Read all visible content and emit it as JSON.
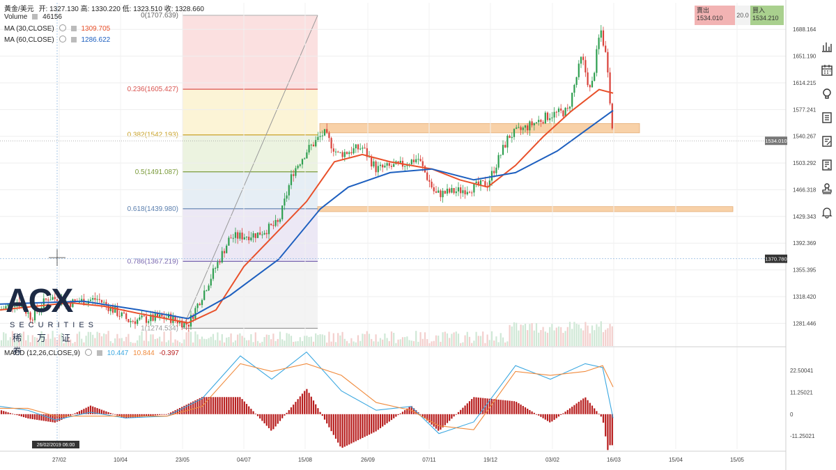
{
  "header": {
    "symbol": "黃金/美元",
    "ohlc_text": "开: 1327.130 高: 1330.220 低: 1323.510 收: 1328.660",
    "volume_label": "Volume",
    "volume_value": "46156",
    "ma30_label": "MA (30,CLOSE)",
    "ma30_value": "1309.705",
    "ma60_label": "MA (60,CLOSE)",
    "ma60_value": "1286.622",
    "macd_label": "MACD (12,26,CLOSE,9)",
    "macd_values": [
      "10.447",
      "10.844",
      "-0.397"
    ]
  },
  "trade": {
    "sell_label": "賣出",
    "sell_price": "1534.010",
    "spread": "20.0",
    "buy_label": "買入",
    "buy_price": "1534.210"
  },
  "logo": {
    "brand": "ACX",
    "sub": "SECURITIES",
    "cn": "稀万证券"
  },
  "toolbar": [
    "bar-chart-icon",
    "calendar-icon",
    "lightbulb-icon",
    "document-icon",
    "edit-document-icon",
    "report-icon",
    "stamp-icon",
    "bell-icon"
  ],
  "colors": {
    "up": "#2e9e4f",
    "down": "#d9413a",
    "ma30": "#e8502a",
    "ma60": "#1d5fbf",
    "macd_line": "#3aa7e0",
    "signal_line": "#f08a3c",
    "hist": "#b71c1c",
    "zone": "#f7c99a"
  },
  "chart_data": {
    "type": "candlestick",
    "instrument": "黃金/美元",
    "price_axis_ticks": [
      "1688.164",
      "1651.190",
      "1614.215",
      "1577.241",
      "1540.267",
      "1503.292",
      "1466.318",
      "1429.343",
      "1392.369",
      "1355.395",
      "1318.420",
      "1281.446"
    ],
    "price_axis_range": [
      1250,
      1725
    ],
    "time_axis_ticks": [
      "27/02",
      "10/04",
      "23/05",
      "04/07",
      "15/08",
      "26/09",
      "07/11",
      "19/12",
      "03/02",
      "16/03",
      "15/04",
      "15/05"
    ],
    "current_price_marker": "1534.010",
    "crosshair_price": "1370.780",
    "crosshair_time": "26/02/2019  06:00",
    "fibonacci": [
      {
        "label": "0(1707.639)",
        "price": 1707.639
      },
      {
        "label": "0.236(1605.427)",
        "price": 1605.427
      },
      {
        "label": "0.382(1542.193)",
        "price": 1542.193
      },
      {
        "label": "0.5(1491.087)",
        "price": 1491.087
      },
      {
        "label": "0.618(1439.980)",
        "price": 1439.98
      },
      {
        "label": "0.786(1367.219)",
        "price": 1367.219
      },
      {
        "label": "1(1274.534)",
        "price": 1274.534
      }
    ],
    "zones": [
      {
        "from": 1545,
        "to": 1558
      },
      {
        "from": 1436,
        "to": 1443
      }
    ],
    "macd_axis_ticks": [
      "22.50041",
      "11.25021",
      "0",
      "-11.25021"
    ],
    "macd_range": [
      -18,
      34
    ],
    "anchor_points": [
      {
        "x": 0,
        "price": 1300
      },
      {
        "x": 25,
        "price": 1312
      },
      {
        "x": 45,
        "price": 1290
      },
      {
        "x": 70,
        "price": 1318
      },
      {
        "x": 100,
        "price": 1310
      },
      {
        "x": 140,
        "price": 1315
      },
      {
        "x": 185,
        "price": 1285
      },
      {
        "x": 240,
        "price": 1290
      },
      {
        "x": 270,
        "price": 1280
      },
      {
        "x": 300,
        "price": 1340
      },
      {
        "x": 330,
        "price": 1400
      },
      {
        "x": 370,
        "price": 1405
      },
      {
        "x": 400,
        "price": 1420
      },
      {
        "x": 420,
        "price": 1490
      },
      {
        "x": 440,
        "price": 1520
      },
      {
        "x": 465,
        "price": 1545
      },
      {
        "x": 485,
        "price": 1515
      },
      {
        "x": 520,
        "price": 1525
      },
      {
        "x": 540,
        "price": 1495
      },
      {
        "x": 575,
        "price": 1500
      },
      {
        "x": 600,
        "price": 1510
      },
      {
        "x": 625,
        "price": 1460
      },
      {
        "x": 660,
        "price": 1465
      },
      {
        "x": 700,
        "price": 1475
      },
      {
        "x": 730,
        "price": 1540
      },
      {
        "x": 760,
        "price": 1555
      },
      {
        "x": 790,
        "price": 1570
      },
      {
        "x": 815,
        "price": 1575
      },
      {
        "x": 835,
        "price": 1650
      },
      {
        "x": 848,
        "price": 1600
      },
      {
        "x": 862,
        "price": 1690
      },
      {
        "x": 872,
        "price": 1640
      },
      {
        "x": 880,
        "price": 1534
      }
    ],
    "ma30_points": [
      {
        "x": 0,
        "price": 1300
      },
      {
        "x": 100,
        "price": 1310
      },
      {
        "x": 150,
        "price": 1305
      },
      {
        "x": 200,
        "price": 1295
      },
      {
        "x": 270,
        "price": 1282
      },
      {
        "x": 310,
        "price": 1300
      },
      {
        "x": 350,
        "price": 1360
      },
      {
        "x": 400,
        "price": 1410
      },
      {
        "x": 440,
        "price": 1450
      },
      {
        "x": 480,
        "price": 1505
      },
      {
        "x": 520,
        "price": 1515
      },
      {
        "x": 560,
        "price": 1505
      },
      {
        "x": 620,
        "price": 1495
      },
      {
        "x": 660,
        "price": 1480
      },
      {
        "x": 700,
        "price": 1470
      },
      {
        "x": 740,
        "price": 1500
      },
      {
        "x": 780,
        "price": 1540
      },
      {
        "x": 820,
        "price": 1575
      },
      {
        "x": 860,
        "price": 1605
      },
      {
        "x": 880,
        "price": 1600
      }
    ],
    "ma60_points": [
      {
        "x": 0,
        "price": 1308
      },
      {
        "x": 120,
        "price": 1312
      },
      {
        "x": 200,
        "price": 1300
      },
      {
        "x": 270,
        "price": 1288
      },
      {
        "x": 330,
        "price": 1320
      },
      {
        "x": 400,
        "price": 1370
      },
      {
        "x": 460,
        "price": 1440
      },
      {
        "x": 500,
        "price": 1470
      },
      {
        "x": 560,
        "price": 1490
      },
      {
        "x": 620,
        "price": 1495
      },
      {
        "x": 680,
        "price": 1480
      },
      {
        "x": 740,
        "price": 1490
      },
      {
        "x": 800,
        "price": 1520
      },
      {
        "x": 850,
        "price": 1555
      },
      {
        "x": 880,
        "price": 1576
      }
    ],
    "macd_points": [
      {
        "x": 0,
        "macd": 4,
        "signal": 3
      },
      {
        "x": 40,
        "macd": 2,
        "signal": 3
      },
      {
        "x": 80,
        "macd": -3,
        "signal": -1
      },
      {
        "x": 130,
        "macd": 1,
        "signal": -1
      },
      {
        "x": 180,
        "macd": -2,
        "signal": -1
      },
      {
        "x": 240,
        "macd": -1,
        "signal": -1
      },
      {
        "x": 290,
        "macd": 8,
        "signal": 4
      },
      {
        "x": 345,
        "macd": 30,
        "signal": 26
      },
      {
        "x": 390,
        "macd": 18,
        "signal": 22
      },
      {
        "x": 440,
        "macd": 32,
        "signal": 26
      },
      {
        "x": 490,
        "macd": 12,
        "signal": 20
      },
      {
        "x": 540,
        "macd": 2,
        "signal": 6
      },
      {
        "x": 590,
        "macd": 4,
        "signal": 2
      },
      {
        "x": 630,
        "macd": -10,
        "signal": -6
      },
      {
        "x": 680,
        "macd": -4,
        "signal": -8
      },
      {
        "x": 740,
        "macd": 25,
        "signal": 22
      },
      {
        "x": 790,
        "macd": 18,
        "signal": 20
      },
      {
        "x": 840,
        "macd": 26,
        "signal": 22
      },
      {
        "x": 865,
        "macd": 24,
        "signal": 25
      },
      {
        "x": 880,
        "macd": -2,
        "signal": 14
      }
    ]
  }
}
